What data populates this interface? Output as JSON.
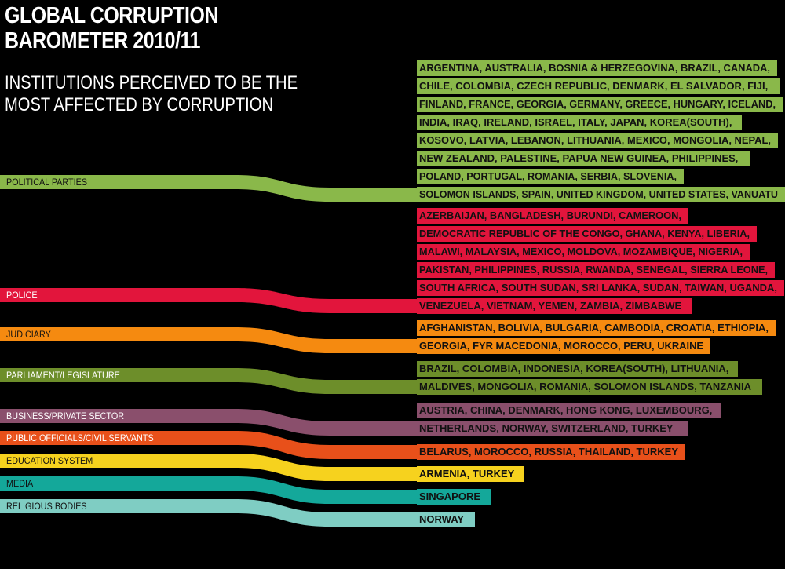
{
  "title": [
    "GLOBAL CORRUPTION",
    "BAROMETER 2010/11"
  ],
  "subtitle": [
    "INSTITUTIONS PERCEIVED TO BE THE",
    "MOST AFFECTED BY CORRUPTION"
  ],
  "colors": {
    "political_parties": "#8ab84a",
    "police": "#e2153c",
    "judiciary": "#f58a10",
    "parliament": "#6d8e2a",
    "business": "#8a4f6c",
    "public_officials": "#e8501a",
    "education": "#f6d21e",
    "media": "#14a89a",
    "religious": "#7fcdc3"
  },
  "categories": [
    {
      "key": "political_parties",
      "label": "POLITICAL PARTIES",
      "color": "#8ab84a",
      "lines": [
        "ARGENTINA, AUSTRALIA, BOSNIA & HERZEGOVINA, BRAZIL, CANADA,",
        "CHILE, COLOMBIA, CZECH REPUBLIC, DENMARK, EL SALVADOR, FIJI,",
        "FINLAND, FRANCE, GEORGIA, GERMANY, GREECE, HUNGARY, ICELAND,",
        "INDIA, IRAQ, IRELAND, ISRAEL, ITALY, JAPAN, KOREA(SOUTH),",
        "KOSOVO, LATVIA, LEBANON, LITHUANIA, MEXICO, MONGOLIA, NEPAL,",
        "NEW ZEALAND, PALESTINE, PAPUA NEW GUINEA, PHILIPPINES,",
        "POLAND, PORTUGAL, ROMANIA, SERBIA, SLOVENIA,",
        "SOLOMON ISLANDS, SPAIN, UNITED KINGDOM, UNITED STATES, VANUATU"
      ]
    },
    {
      "key": "police",
      "label": "POLICE",
      "color": "#e2153c",
      "lines": [
        "AZERBAIJAN, BANGLADESH, BURUNDI, CAMEROON,",
        "DEMOCRATIC REPUBLIC OF THE CONGO, GHANA, KENYA, LIBERIA,",
        "MALAWI, MALAYSIA, MEXICO, MOLDOVA, MOZAMBIQUE, NIGERIA,",
        "PAKISTAN, PHILIPPINES, RUSSIA, RWANDA, SENEGAL, SIERRA LEONE,",
        "SOUTH AFRICA, SOUTH SUDAN, SRI LANKA, SUDAN, TAIWAN, UGANDA,",
        "VENEZUELA, VIETNAM, YEMEN, ZAMBIA, ZIMBABWE"
      ]
    },
    {
      "key": "judiciary",
      "label": "JUDICIARY",
      "color": "#f58a10",
      "lines": [
        "AFGHANISTAN, BOLIVIA, BULGARIA, CAMBODIA, CROATIA, ETHIOPIA,",
        "GEORGIA, FYR MACEDONIA, MOROCCO, PERU, UKRAINE"
      ]
    },
    {
      "key": "parliament",
      "label": "PARLIAMENT/LEGISLATURE",
      "color": "#6d8e2a",
      "lines": [
        "BRAZIL, COLOMBIA, INDONESIA, KOREA(SOUTH), LITHUANIA,",
        "MALDIVES, MONGOLIA, ROMANIA, SOLOMON ISLANDS, TANZANIA"
      ]
    },
    {
      "key": "business",
      "label": "BUSINESS/PRIVATE SECTOR",
      "color": "#8a4f6c",
      "lines": [
        "AUSTRIA, CHINA, DENMARK, HONG KONG, LUXEMBOURG,",
        "NETHERLANDS, NORWAY, SWITZERLAND, TURKEY"
      ]
    },
    {
      "key": "public_officials",
      "label": "PUBLIC OFFICIALS/CIVIL SERVANTS",
      "color": "#e8501a",
      "lines": [
        "BELARUS, MOROCCO, RUSSIA, THAILAND, TURKEY"
      ]
    },
    {
      "key": "education",
      "label": "EDUCATION SYSTEM",
      "color": "#f6d21e",
      "lines": [
        "ARMENIA, TURKEY"
      ]
    },
    {
      "key": "media",
      "label": "MEDIA",
      "color": "#14a89a",
      "lines": [
        "SINGAPORE"
      ]
    },
    {
      "key": "religious",
      "label": "RELIGIOUS BODIES",
      "color": "#7fcdc3",
      "lines": [
        "NORWAY"
      ]
    }
  ]
}
